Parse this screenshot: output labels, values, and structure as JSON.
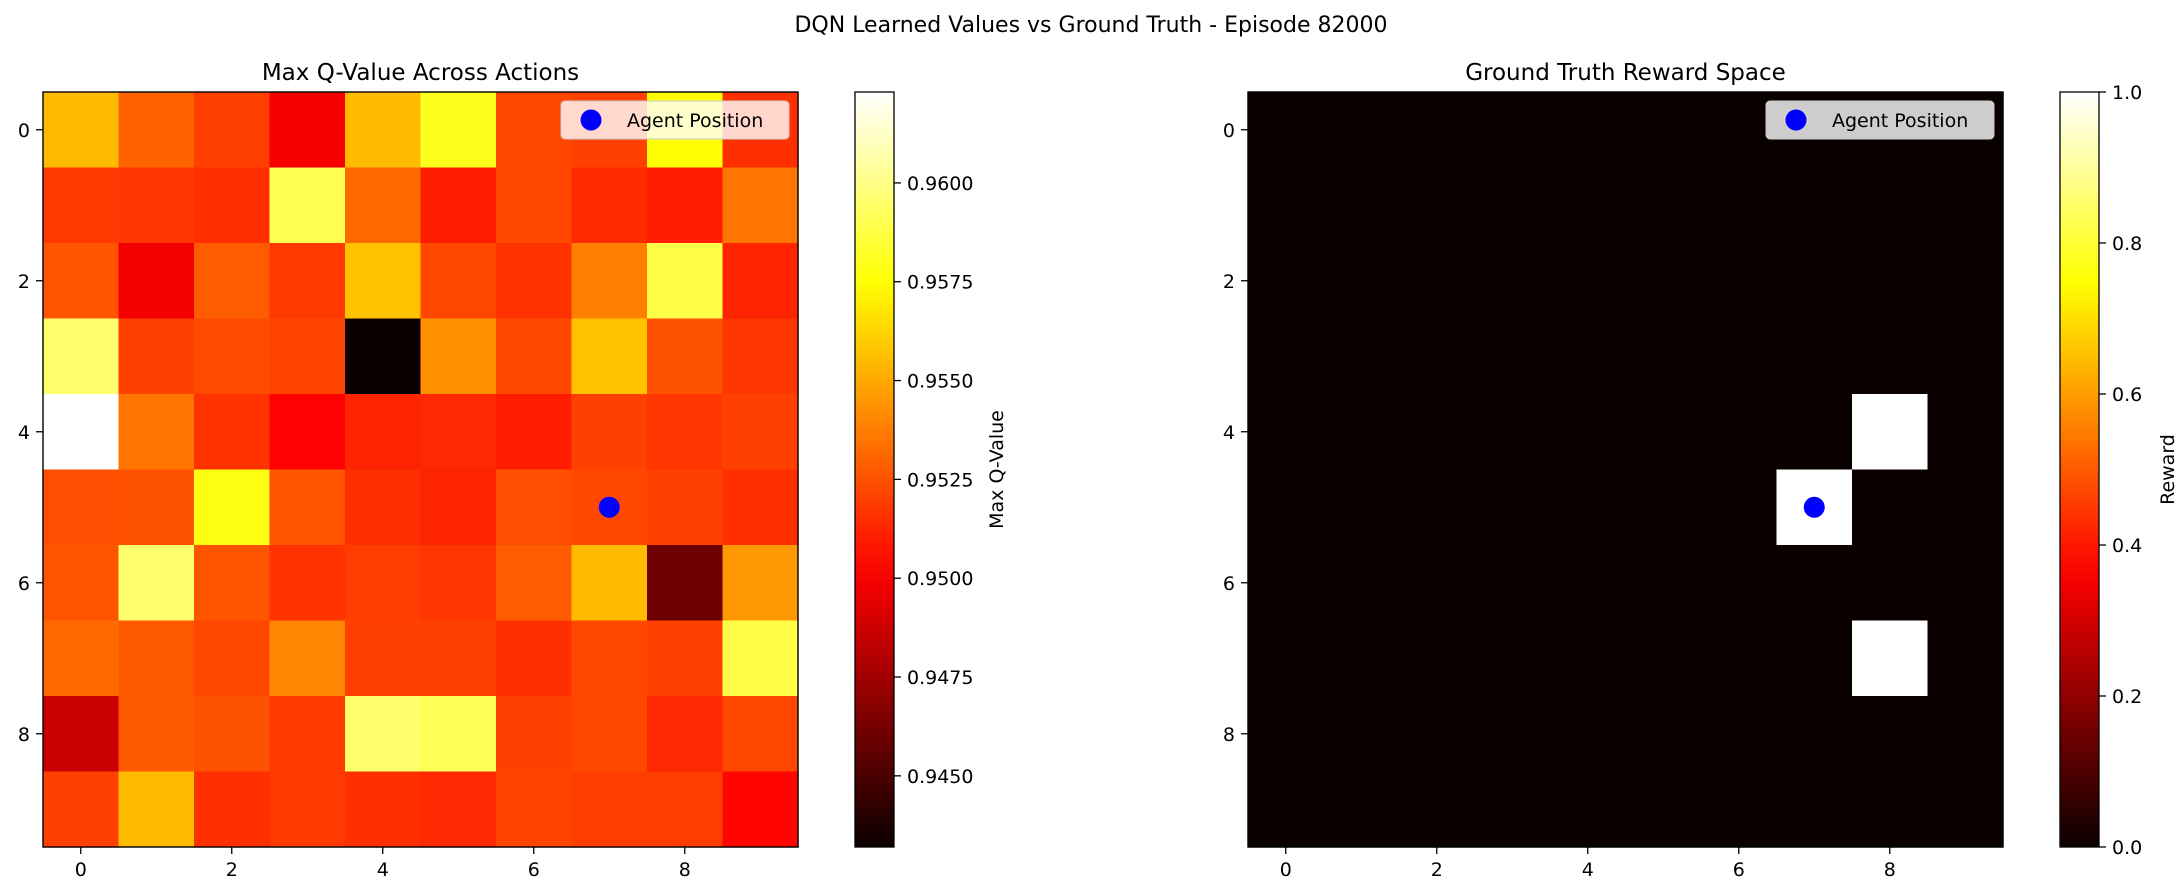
{
  "figure": {
    "suptitle": "DQN Learned Values vs Ground Truth - Episode 82000"
  },
  "chart_data": [
    {
      "type": "heatmap",
      "title": "Max Q-Value Across Actions",
      "xlabel": "",
      "ylabel": "",
      "x_ticks": [
        0,
        2,
        4,
        6,
        8
      ],
      "y_ticks": [
        0,
        2,
        4,
        6,
        8
      ],
      "colormap": "hot",
      "vmin": 0.9432,
      "vmax": 0.9623,
      "colorbar": {
        "label": "Max Q-Value",
        "ticks": [
          0.945,
          0.9475,
          0.95,
          0.9525,
          0.955,
          0.9575,
          0.96
        ],
        "tick_labels": [
          "0.9450",
          "0.9475",
          "0.9500",
          "0.9525",
          "0.9550",
          "0.9575",
          "0.9600"
        ]
      },
      "grid": false,
      "legend": {
        "position": "upper right",
        "entries": [
          "Agent Position"
        ]
      },
      "agent_position": {
        "row": 5,
        "col": 7
      },
      "values": [
        [
          0.9555,
          0.953,
          0.952,
          0.95,
          0.9555,
          0.958,
          0.9522,
          0.952,
          0.9575,
          0.9515
        ],
        [
          0.9518,
          0.9517,
          0.9515,
          0.959,
          0.9532,
          0.951,
          0.9522,
          0.9514,
          0.951,
          0.9535
        ],
        [
          0.9526,
          0.9499,
          0.9528,
          0.9518,
          0.9557,
          0.9522,
          0.9516,
          0.9538,
          0.9588,
          0.9512
        ],
        [
          0.9595,
          0.952,
          0.9523,
          0.9521,
          0.9432,
          0.9543,
          0.9522,
          0.9557,
          0.9525,
          0.9517
        ],
        [
          0.9623,
          0.9535,
          0.9516,
          0.9502,
          0.9512,
          0.9513,
          0.951,
          0.952,
          0.9517,
          0.952
        ],
        [
          0.9524,
          0.9525,
          0.9578,
          0.9526,
          0.9515,
          0.9512,
          0.9524,
          0.9522,
          0.952,
          0.9515
        ],
        [
          0.9526,
          0.9595,
          0.9526,
          0.9516,
          0.9519,
          0.9517,
          0.9528,
          0.9555,
          0.946,
          0.9545
        ],
        [
          0.9532,
          0.9527,
          0.9522,
          0.954,
          0.952,
          0.952,
          0.9515,
          0.9522,
          0.952,
          0.9588
        ],
        [
          0.9487,
          0.9527,
          0.9525,
          0.9518,
          0.9595,
          0.9591,
          0.952,
          0.9522,
          0.9513,
          0.9522
        ],
        [
          0.952,
          0.9555,
          0.9515,
          0.9518,
          0.9515,
          0.9513,
          0.9521,
          0.9519,
          0.9519,
          0.9503
        ]
      ]
    },
    {
      "type": "heatmap",
      "title": "Ground Truth Reward Space",
      "xlabel": "",
      "ylabel": "",
      "x_ticks": [
        0,
        2,
        4,
        6,
        8
      ],
      "y_ticks": [
        0,
        2,
        4,
        6,
        8
      ],
      "colormap": "hot",
      "vmin": 0.0,
      "vmax": 1.0,
      "colorbar": {
        "label": "Reward",
        "ticks": [
          0.0,
          0.2,
          0.4,
          0.6,
          0.8,
          1.0
        ],
        "tick_labels": [
          "0.0",
          "0.2",
          "0.4",
          "0.6",
          "0.8",
          "1.0"
        ]
      },
      "grid": false,
      "legend": {
        "position": "upper right",
        "entries": [
          "Agent Position"
        ]
      },
      "agent_position": {
        "row": 5,
        "col": 7
      },
      "values": [
        [
          0,
          0,
          0,
          0,
          0,
          0,
          0,
          0,
          0,
          0
        ],
        [
          0,
          0,
          0,
          0,
          0,
          0,
          0,
          0,
          0,
          0
        ],
        [
          0,
          0,
          0,
          0,
          0,
          0,
          0,
          0,
          0,
          0
        ],
        [
          0,
          0,
          0,
          0,
          0,
          0,
          0,
          0,
          0,
          0
        ],
        [
          0,
          0,
          0,
          0,
          0,
          0,
          0,
          0,
          1,
          0
        ],
        [
          0,
          0,
          0,
          0,
          0,
          0,
          0,
          1,
          0,
          0
        ],
        [
          0,
          0,
          0,
          0,
          0,
          0,
          0,
          0,
          0,
          0
        ],
        [
          0,
          0,
          0,
          0,
          0,
          0,
          0,
          0,
          1,
          0
        ],
        [
          0,
          0,
          0,
          0,
          0,
          0,
          0,
          0,
          0,
          0
        ],
        [
          0,
          0,
          0,
          0,
          0,
          0,
          0,
          0,
          0,
          0
        ]
      ]
    }
  ],
  "colors": {
    "agent_marker": "#0000ff",
    "axis": "#000000",
    "background": "#ffffff"
  }
}
